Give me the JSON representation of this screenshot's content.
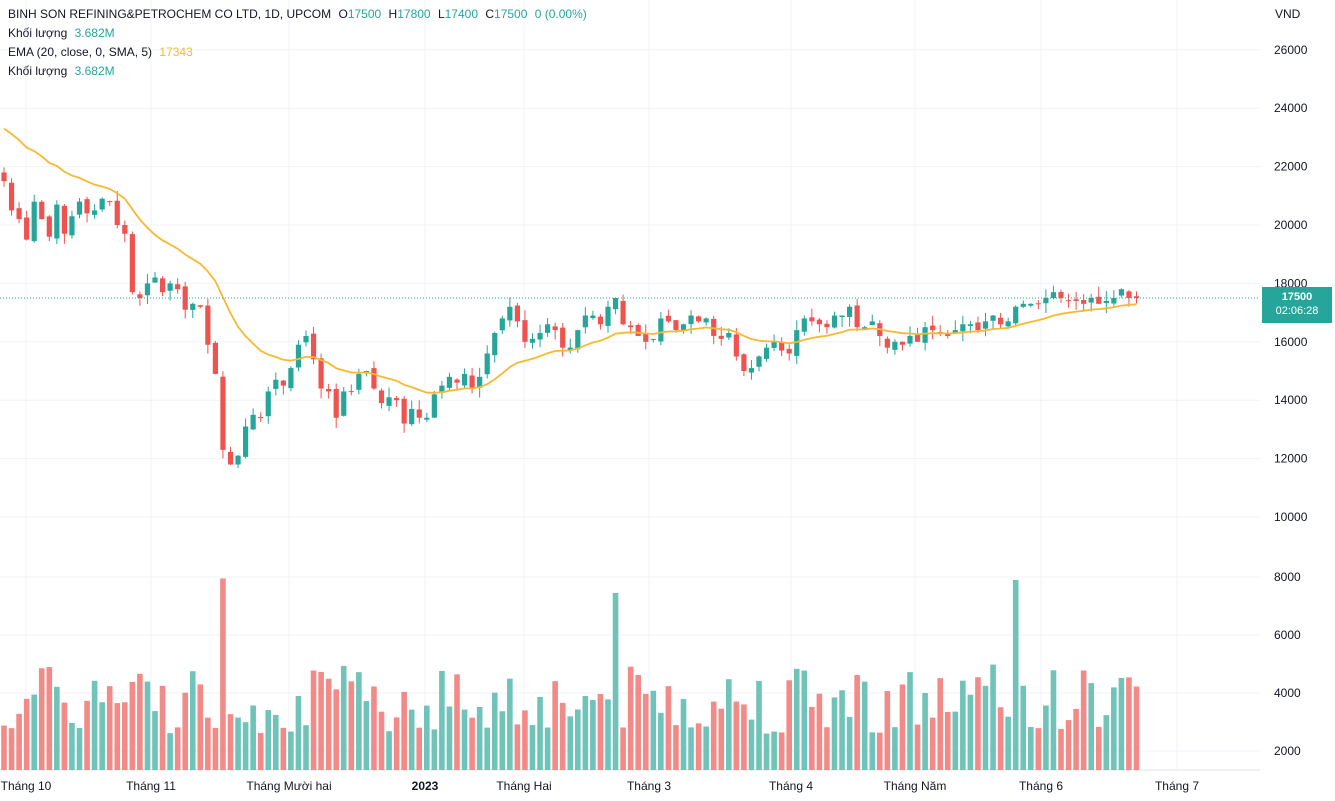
{
  "legend": {
    "symbol": "BINH SON REFINING&PETROCHEM CO LTD, 1D, UPCOM",
    "o_label": "O",
    "o_value": "17500",
    "h_label": "H",
    "h_value": "17800",
    "l_label": "L",
    "l_value": "17400",
    "c_label": "C",
    "c_value": "17500",
    "change": "0 (0.00%)",
    "volume_label": "Khối lượng",
    "volume_value": "3.682M",
    "ema_label": "EMA (20, close, 0, SMA, 5)",
    "ema_value": "17343",
    "volume2_label": "Khối lượng",
    "volume2_value": "3.682M"
  },
  "price_axis": {
    "unit": "VND",
    "current_price": "17500",
    "countdown": "02:06:28"
  },
  "colors": {
    "up": "#26a69a",
    "down": "#ef5350",
    "up_vol": "#6fc3b8",
    "down_vol": "#f28b87",
    "ema": "#f7b931"
  },
  "chart_data": {
    "type": "candlestick",
    "price_ticks": [
      10000,
      12000,
      14000,
      16000,
      18000,
      20000,
      22000,
      24000,
      26000
    ],
    "volume_ticks": [
      "2000",
      "4000",
      "6000",
      "8000"
    ],
    "x_labels": [
      "Tháng 10",
      "Tháng 11",
      "Tháng Mười hai",
      "2023",
      "Tháng Hai",
      "Tháng 3",
      "Tháng 4",
      "Tháng Năm",
      "Tháng 6",
      "Tháng 7"
    ],
    "ohlc_close": [
      21500,
      20500,
      20200,
      19500,
      20800,
      20200,
      19600,
      20700,
      19700,
      20300,
      20800,
      20400,
      20500,
      20900,
      20800,
      20000,
      19700,
      17700,
      17500,
      18000,
      18200,
      17700,
      18000,
      17800,
      17100,
      17300,
      17200,
      15900,
      14900,
      12300,
      11800,
      12100,
      13100,
      13500,
      13400,
      14300,
      14700,
      14500,
      15100,
      15900,
      16200,
      15400,
      14400,
      14300,
      13400,
      14300,
      14300,
      14900,
      15000,
      14400,
      13900,
      14100,
      14000,
      13200,
      13700,
      13400,
      13400,
      14200,
      14500,
      14800,
      14600,
      14900,
      14400,
      14800,
      15600,
      16300,
      16800,
      17200,
      16700,
      16000,
      16100,
      16300,
      16600,
      16400,
      15800,
      15800,
      16400,
      16900,
      16900,
      16600,
      17200,
      17500,
      16600,
      16500,
      16200,
      16000,
      16100,
      16800,
      16700,
      16400,
      16600,
      16900,
      16700,
      16800,
      16200,
      16100,
      16300,
      15500,
      15000,
      15100,
      15500,
      15800,
      16000,
      15700,
      15600,
      16400,
      16800,
      16700,
      16600,
      16500,
      16900,
      16900,
      17200,
      16500,
      16500,
      16700,
      16200,
      15800,
      16000,
      15900,
      16200,
      16000,
      16500,
      16400,
      16300,
      16200,
      16400,
      16600,
      16600,
      16400,
      16700,
      16900,
      16600,
      16700,
      17200,
      17300,
      17300,
      17300,
      17500,
      17700,
      17500,
      17400,
      17400,
      17300,
      17500,
      17300,
      17400,
      17500,
      17800,
      17500,
      17500
    ]
  }
}
